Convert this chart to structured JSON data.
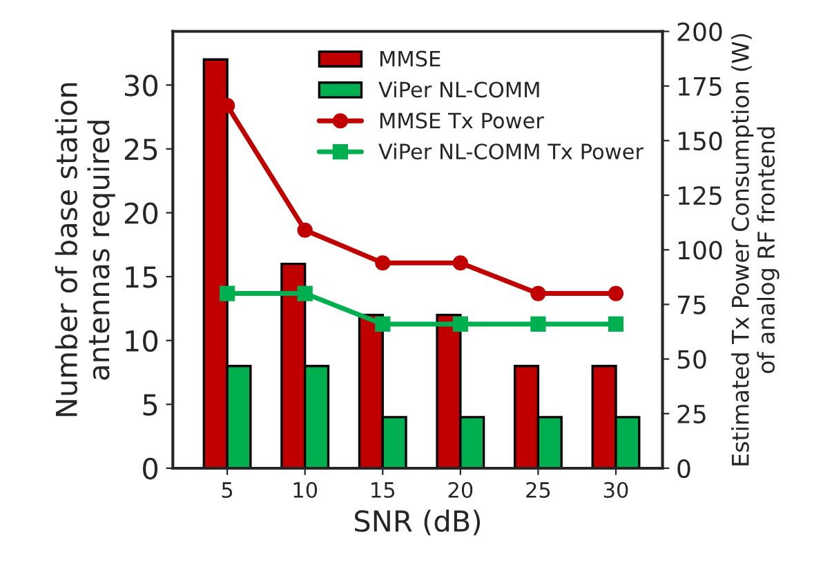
{
  "chart_data": {
    "type": "bar",
    "xlabel": "SNR (dB)",
    "ylabel": "Number of base station\nantennas required",
    "y2label": "Estimated Tx Power Consumption (W)\nof analog RF frontend",
    "categories": [
      "5",
      "10",
      "15",
      "20",
      "25",
      "30"
    ],
    "series": [
      {
        "name": "MMSE",
        "color": "#c00000",
        "values": [
          32,
          16,
          12,
          12,
          8,
          8
        ]
      },
      {
        "name": "ViPer NL-COMM",
        "color": "#00b050",
        "values": [
          8,
          8,
          4,
          4,
          4,
          4
        ]
      },
      {
        "name": "MMSE Tx Power",
        "type": "line",
        "axis": "y2",
        "marker": "circle",
        "color": "#c00000",
        "values": [
          166,
          109,
          94,
          94,
          80,
          80
        ]
      },
      {
        "name": "ViPer NL-COMM Tx Power",
        "type": "line",
        "axis": "y2",
        "marker": "square",
        "color": "#00b050",
        "values": [
          80,
          80,
          66,
          66,
          66,
          66
        ]
      }
    ],
    "ylim": [
      0,
      34.2
    ],
    "yticks": [
      0,
      5,
      10,
      15,
      20,
      25,
      30
    ],
    "y2lim": [
      0,
      200
    ],
    "y2ticks": [
      0,
      25,
      50,
      75,
      100,
      125,
      150,
      175,
      200
    ],
    "legend": "top right",
    "grid": false
  }
}
